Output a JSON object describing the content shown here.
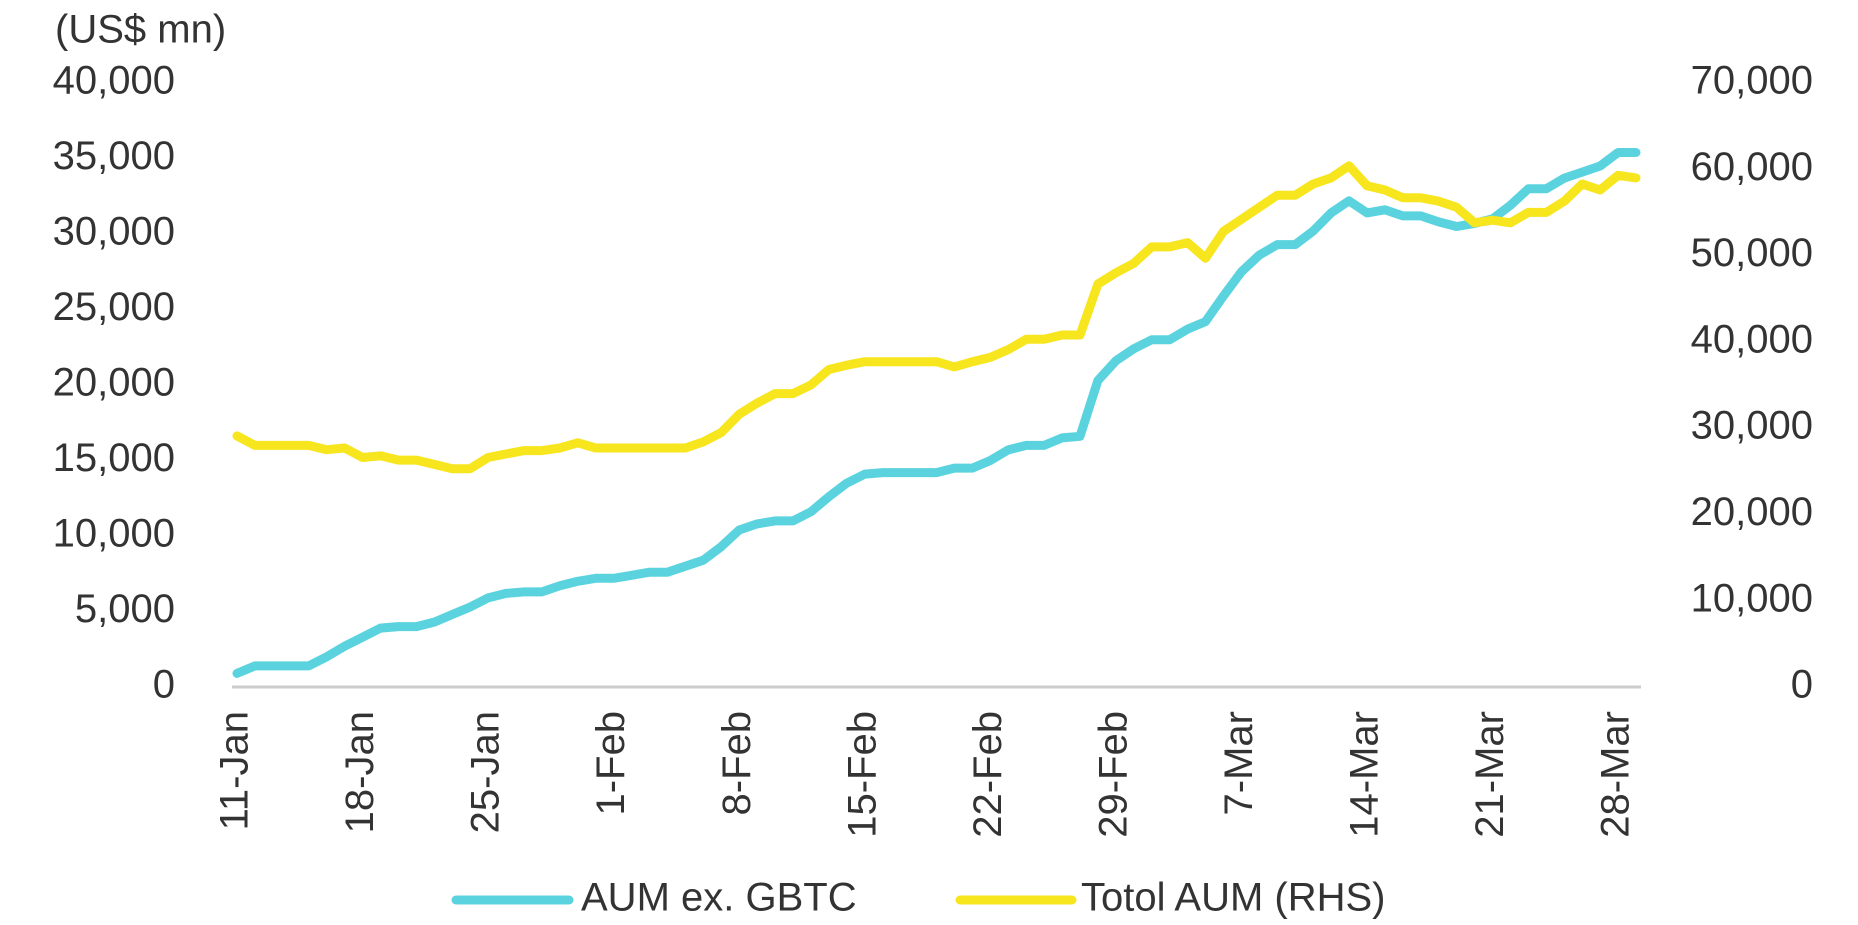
{
  "chart_data": {
    "type": "line",
    "y_axis_label": "(US$ mn)",
    "categories": [
      "11-Jan",
      null,
      null,
      null,
      null,
      null,
      null,
      "18-Jan",
      null,
      null,
      null,
      null,
      null,
      null,
      "25-Jan",
      null,
      null,
      null,
      null,
      null,
      null,
      "1-Feb",
      null,
      null,
      null,
      null,
      null,
      null,
      "8-Feb",
      null,
      null,
      null,
      null,
      null,
      null,
      "15-Feb",
      null,
      null,
      null,
      null,
      null,
      null,
      "22-Feb",
      null,
      null,
      null,
      null,
      null,
      null,
      "29-Feb",
      null,
      null,
      null,
      null,
      null,
      null,
      "7-Mar",
      null,
      null,
      null,
      null,
      null,
      null,
      "14-Mar",
      null,
      null,
      null,
      null,
      null,
      null,
      "21-Mar",
      null,
      null,
      null,
      null,
      null,
      null,
      "28-Mar",
      null
    ],
    "series": [
      {
        "name": "AUM ex. GBTC",
        "color": "#5bd3df",
        "axis": "y",
        "values": [
          900,
          1400,
          1400,
          1400,
          1400,
          2000,
          2700,
          3300,
          3900,
          4000,
          4000,
          4300,
          4800,
          5300,
          5900,
          6200,
          6300,
          6300,
          6700,
          7000,
          7200,
          7200,
          7400,
          7600,
          7600,
          8000,
          8400,
          9300,
          10400,
          10800,
          11000,
          11000,
          11600,
          12600,
          13500,
          14100,
          14200,
          14200,
          14200,
          14200,
          14500,
          14500,
          15000,
          15700,
          16000,
          16000,
          16500,
          16600,
          20300,
          21600,
          22400,
          23000,
          23000,
          23700,
          24200,
          25900,
          27500,
          28600,
          29300,
          29300,
          30200,
          31400,
          32200,
          31400,
          31600,
          31200,
          31200,
          30800,
          30500,
          30700,
          31000,
          31900,
          33000,
          33000,
          33700,
          34100,
          34500,
          35400,
          35400
        ]
      },
      {
        "name": "Totol AUM (RHS)",
        "color": "#f7e51d",
        "axis": "y2",
        "values": [
          29100,
          28000,
          28000,
          28000,
          28000,
          27500,
          27700,
          26600,
          26800,
          26300,
          26300,
          25800,
          25300,
          25300,
          26600,
          27000,
          27400,
          27400,
          27700,
          28300,
          27700,
          27700,
          27700,
          27700,
          27700,
          27700,
          28400,
          29500,
          31600,
          32900,
          34000,
          34000,
          35000,
          36800,
          37300,
          37700,
          37700,
          37700,
          37700,
          37700,
          37100,
          37700,
          38200,
          39100,
          40300,
          40300,
          40800,
          40800,
          46700,
          48000,
          49100,
          51000,
          51000,
          51500,
          49700,
          52800,
          54200,
          55600,
          57000,
          57000,
          58300,
          59000,
          60400,
          58100,
          57600,
          56700,
          56700,
          56300,
          55600,
          53800,
          54100,
          53800,
          55000,
          55000,
          56300,
          58300,
          57600,
          59300,
          59000
        ]
      }
    ],
    "ylim": [
      0,
      40000
    ],
    "yticks": [
      0,
      {
        "value": 5000,
        "label": "5,000"
      },
      {
        "value": 10000,
        "label": "10,000"
      },
      {
        "value": 15000,
        "label": "15,000"
      },
      {
        "value": 20000,
        "label": "20,000"
      },
      {
        "value": 25000,
        "label": "25,000"
      },
      {
        "value": 30000,
        "label": "30,000"
      },
      {
        "value": 35000,
        "label": "35,000"
      },
      {
        "value": 40000,
        "label": "40,000"
      }
    ],
    "y2lim": [
      0,
      70000
    ],
    "y2ticks": [
      0,
      {
        "value": 10000,
        "label": "10,000"
      },
      {
        "value": 20000,
        "label": "20,000"
      },
      {
        "value": 30000,
        "label": "30,000"
      },
      {
        "value": 40000,
        "label": "40,000"
      },
      {
        "value": 50000,
        "label": "50,000"
      },
      {
        "value": 60000,
        "label": "60,000"
      },
      {
        "value": 70000,
        "label": "70,000"
      }
    ],
    "grid": false,
    "legend": "bottom"
  }
}
